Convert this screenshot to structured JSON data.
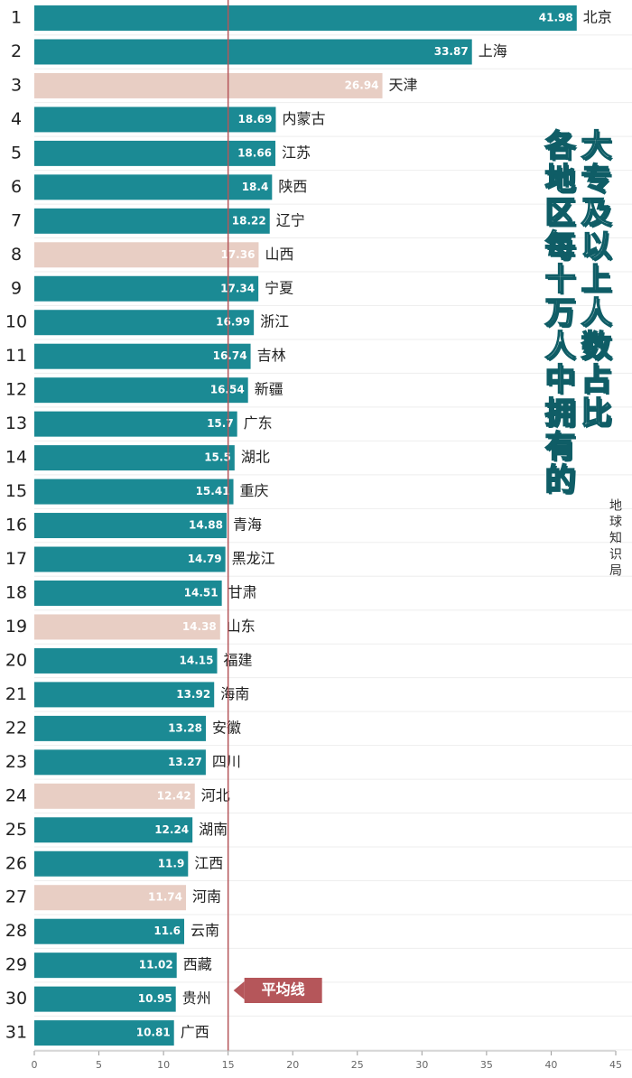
{
  "chart_data": {
    "type": "hbar",
    "title": [
      "各地区每十万人中拥有的",
      "大专及以上人数占比"
    ],
    "source": "地球知识局",
    "ranks": [
      1,
      2,
      3,
      4,
      5,
      6,
      7,
      8,
      9,
      10,
      11,
      12,
      13,
      14,
      15,
      16,
      17,
      18,
      19,
      20,
      21,
      22,
      23,
      24,
      25,
      26,
      27,
      28,
      29,
      30,
      31
    ],
    "categories": [
      "北京",
      "上海",
      "天津",
      "内蒙古",
      "江苏",
      "陕西",
      "辽宁",
      "山西",
      "宁夏",
      "浙江",
      "吉林",
      "新疆",
      "广东",
      "湖北",
      "重庆",
      "青海",
      "黑龙江",
      "甘肃",
      "山东",
      "福建",
      "海南",
      "安徽",
      "四川",
      "河北",
      "湖南",
      "江西",
      "河南",
      "云南",
      "西藏",
      "贵州",
      "广西"
    ],
    "values": [
      41.98,
      33.87,
      26.94,
      18.69,
      18.66,
      18.4,
      18.22,
      17.36,
      17.34,
      16.99,
      16.74,
      16.54,
      15.7,
      15.5,
      15.41,
      14.88,
      14.79,
      14.51,
      14.38,
      14.15,
      13.92,
      13.28,
      13.27,
      12.42,
      12.24,
      11.9,
      11.74,
      11.6,
      11.02,
      10.95,
      10.81
    ],
    "colors": [
      "#1b8a94",
      "#1b8a94",
      "#e8cec4",
      "#1b8a94",
      "#1b8a94",
      "#1b8a94",
      "#1b8a94",
      "#e8cec4",
      "#1b8a94",
      "#1b8a94",
      "#1b8a94",
      "#1b8a94",
      "#1b8a94",
      "#1b8a94",
      "#1b8a94",
      "#1b8a94",
      "#1b8a94",
      "#1b8a94",
      "#e8cec4",
      "#1b8a94",
      "#1b8a94",
      "#1b8a94",
      "#1b8a94",
      "#e8cec4",
      "#1b8a94",
      "#1b8a94",
      "#e8cec4",
      "#1b8a94",
      "#1b8a94",
      "#1b8a94",
      "#1b8a94"
    ],
    "xlim": [
      0,
      45
    ],
    "xticks": [
      0,
      5,
      10,
      15,
      20,
      25,
      30,
      35,
      40,
      45
    ],
    "reference_line": {
      "value": 15,
      "label": "平均线",
      "color": "#b5565a"
    }
  }
}
